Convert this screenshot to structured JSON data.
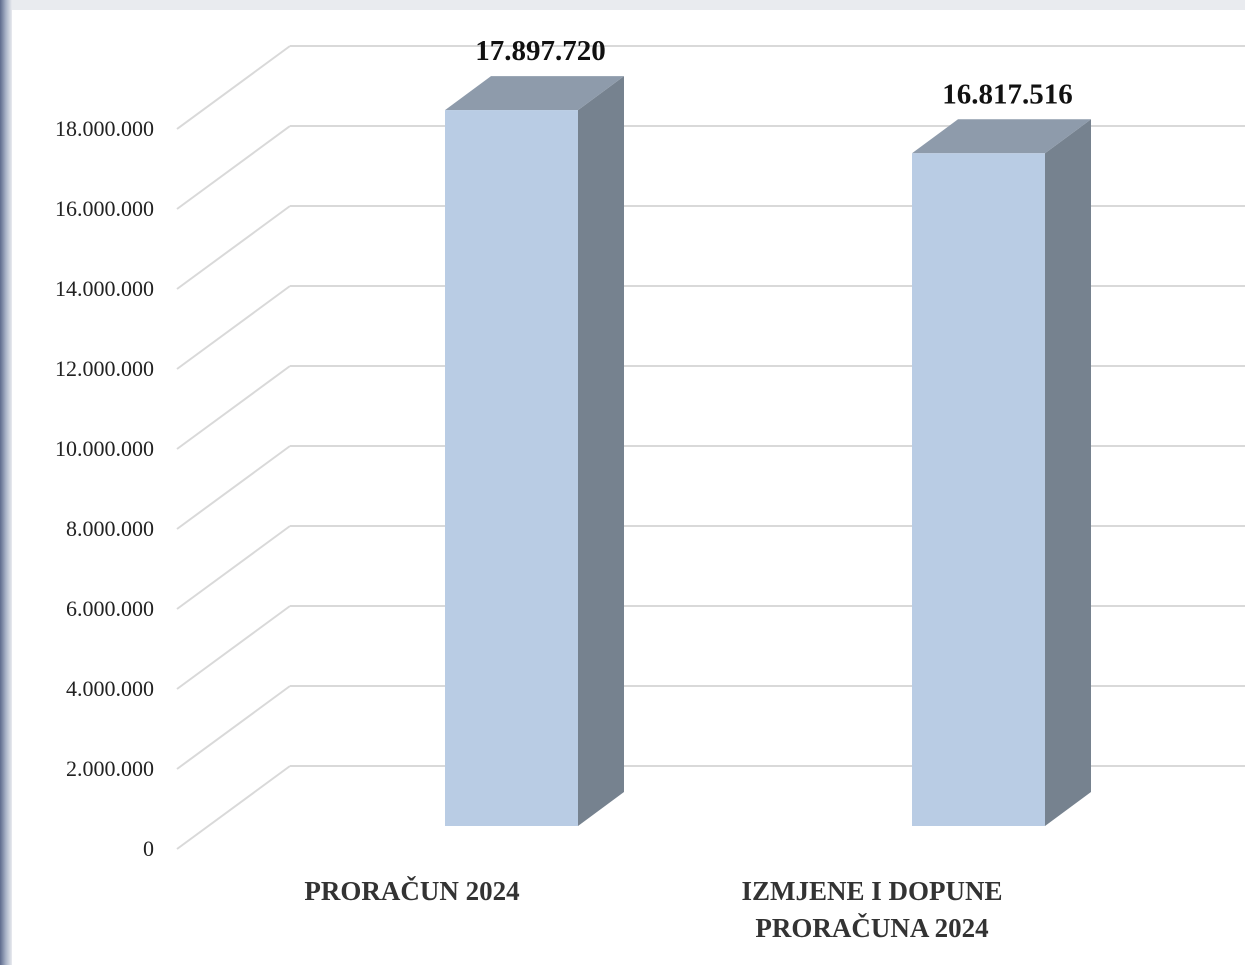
{
  "chart_data": {
    "type": "bar",
    "style": "3d-column",
    "categories": [
      "PRORAČUN 2024",
      "IZMJENE I DOPUNE PRORAČUNA 2024"
    ],
    "category_lines": [
      [
        "PRORAČUN 2024"
      ],
      [
        "IZMJENE I DOPUNE",
        "PRORAČUNA 2024"
      ]
    ],
    "values": [
      17897720,
      16817516
    ],
    "data_labels": [
      "17.897.720",
      "16.817.516"
    ],
    "title": "",
    "xlabel": "",
    "ylabel": "",
    "ylim": [
      0,
      18000000
    ],
    "yticks": [
      0,
      2000000,
      4000000,
      6000000,
      8000000,
      10000000,
      12000000,
      14000000,
      16000000,
      18000000
    ],
    "ytick_labels": [
      "0",
      "2.000.000",
      "4.000.000",
      "6.000.000",
      "8.000.000",
      "10.000.000",
      "12.000.000",
      "14.000.000",
      "16.000.000",
      "18.000.000"
    ],
    "grid": true,
    "legend": "none",
    "colors": {
      "bar_front": "#b9cce4",
      "bar_side": "#76828f",
      "bar_top": "#8e9bab",
      "grid": "#d9d9d9"
    }
  }
}
